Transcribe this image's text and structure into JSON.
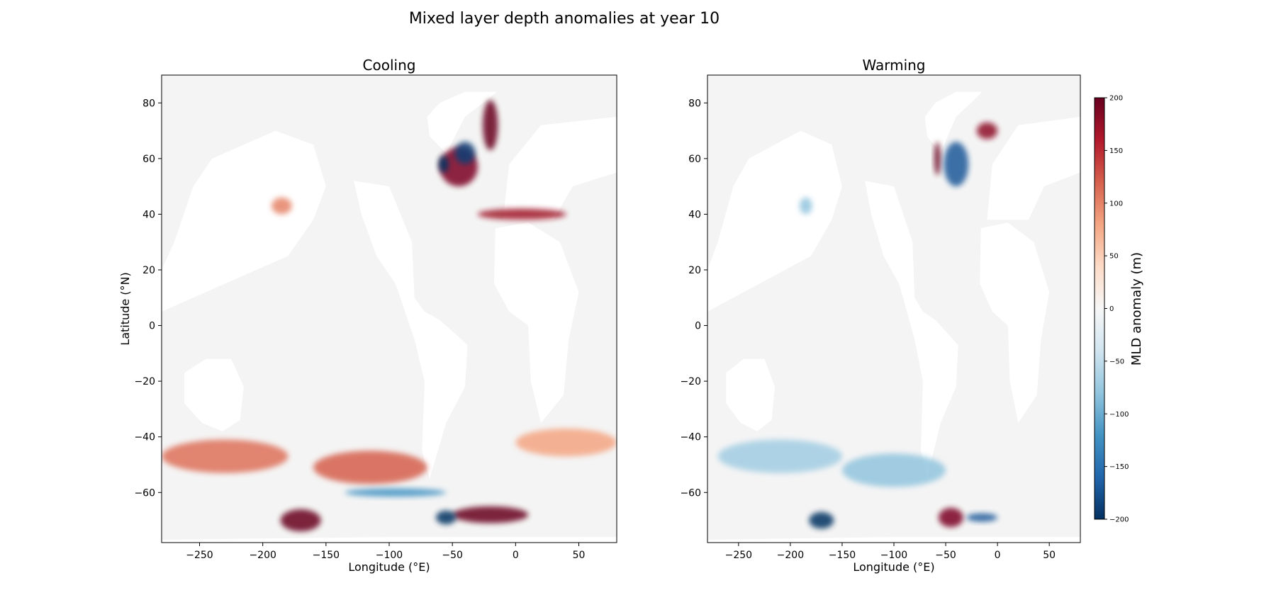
{
  "figure": {
    "title": "Mixed layer depth anomalies at year 10"
  },
  "chart_data": [
    {
      "type": "heatmap",
      "title": "Cooling",
      "xlabel": "Longitude (°E)",
      "ylabel": "Latitude (°N)",
      "xlim": [
        -280,
        80
      ],
      "ylim": [
        -78,
        90
      ],
      "xticks": [
        -250,
        -200,
        -150,
        -100,
        -50,
        0,
        50
      ],
      "yticks": [
        -60,
        -40,
        -20,
        0,
        20,
        40,
        60,
        80
      ],
      "features": [
        {
          "lon": -230,
          "lat": -47,
          "rx": 50,
          "ry": 6,
          "value": 110
        },
        {
          "lon": -115,
          "lat": -51,
          "rx": 45,
          "ry": 6,
          "value": 120
        },
        {
          "lon": 40,
          "lat": -42,
          "rx": 40,
          "ry": 5,
          "value": 80
        },
        {
          "lon": -185,
          "lat": 43,
          "rx": 8,
          "ry": 3,
          "value": 100
        },
        {
          "lon": -45,
          "lat": 57,
          "rx": 15,
          "ry": 7,
          "value": 190
        },
        {
          "lon": -20,
          "lat": 72,
          "rx": 6,
          "ry": 9,
          "value": 200
        },
        {
          "lon": -40,
          "lat": 62,
          "rx": 8,
          "ry": 4,
          "value": -190
        },
        {
          "lon": -57,
          "lat": 58,
          "rx": 4,
          "ry": 3,
          "value": -200
        },
        {
          "lon": 5,
          "lat": 40,
          "rx": 35,
          "ry": 2,
          "value": 170
        },
        {
          "lon": -170,
          "lat": -70,
          "rx": 16,
          "ry": 4,
          "value": 200
        },
        {
          "lon": -20,
          "lat": -68,
          "rx": 30,
          "ry": 3,
          "value": 200
        },
        {
          "lon": -55,
          "lat": -69,
          "rx": 8,
          "ry": 2.5,
          "value": -200
        },
        {
          "lon": -95,
          "lat": -60,
          "rx": 40,
          "ry": 1.5,
          "value": -120
        }
      ]
    },
    {
      "type": "heatmap",
      "title": "Warming",
      "xlabel": "Longitude (°E)",
      "ylabel": "",
      "xlim": [
        -280,
        80
      ],
      "ylim": [
        -78,
        90
      ],
      "xticks": [
        -250,
        -200,
        -150,
        -100,
        -50,
        0,
        50
      ],
      "yticks": [
        -60,
        -40,
        -20,
        0,
        20,
        40,
        60,
        80
      ],
      "features": [
        {
          "lon": -210,
          "lat": -47,
          "rx": 60,
          "ry": 6,
          "value": -70
        },
        {
          "lon": -100,
          "lat": -52,
          "rx": 50,
          "ry": 6,
          "value": -80
        },
        {
          "lon": -185,
          "lat": 43,
          "rx": 6,
          "ry": 3,
          "value": -80
        },
        {
          "lon": -58,
          "lat": 60,
          "rx": 3,
          "ry": 6,
          "value": 200
        },
        {
          "lon": -40,
          "lat": 58,
          "rx": 12,
          "ry": 8,
          "value": -170
        },
        {
          "lon": -10,
          "lat": 70,
          "rx": 10,
          "ry": 3,
          "value": 180
        },
        {
          "lon": -170,
          "lat": -70,
          "rx": 12,
          "ry": 3,
          "value": -200
        },
        {
          "lon": -45,
          "lat": -69,
          "rx": 12,
          "ry": 3.5,
          "value": 190
        },
        {
          "lon": -15,
          "lat": -69,
          "rx": 15,
          "ry": 1.5,
          "value": -170
        }
      ]
    }
  ],
  "colorbar": {
    "label": "MLD anomaly (m)",
    "vmin": -200,
    "vmax": 200,
    "ticks": [
      200,
      150,
      100,
      50,
      0,
      -50,
      -100,
      -150,
      -200
    ],
    "tick_labels": [
      "200",
      "150",
      "100",
      "50",
      "0",
      "−50",
      "−100",
      "−150",
      "−200"
    ],
    "colormap": "RdBu_r",
    "colors": [
      "#053061",
      "#2166ac",
      "#4393c3",
      "#92c5de",
      "#d1e5f0",
      "#f7f7f7",
      "#fddbc7",
      "#f4a582",
      "#d6604d",
      "#b2182b",
      "#67001f"
    ]
  },
  "colors": {
    "land": "#ffffff",
    "ocean_neutral": "#f4f4f4"
  }
}
